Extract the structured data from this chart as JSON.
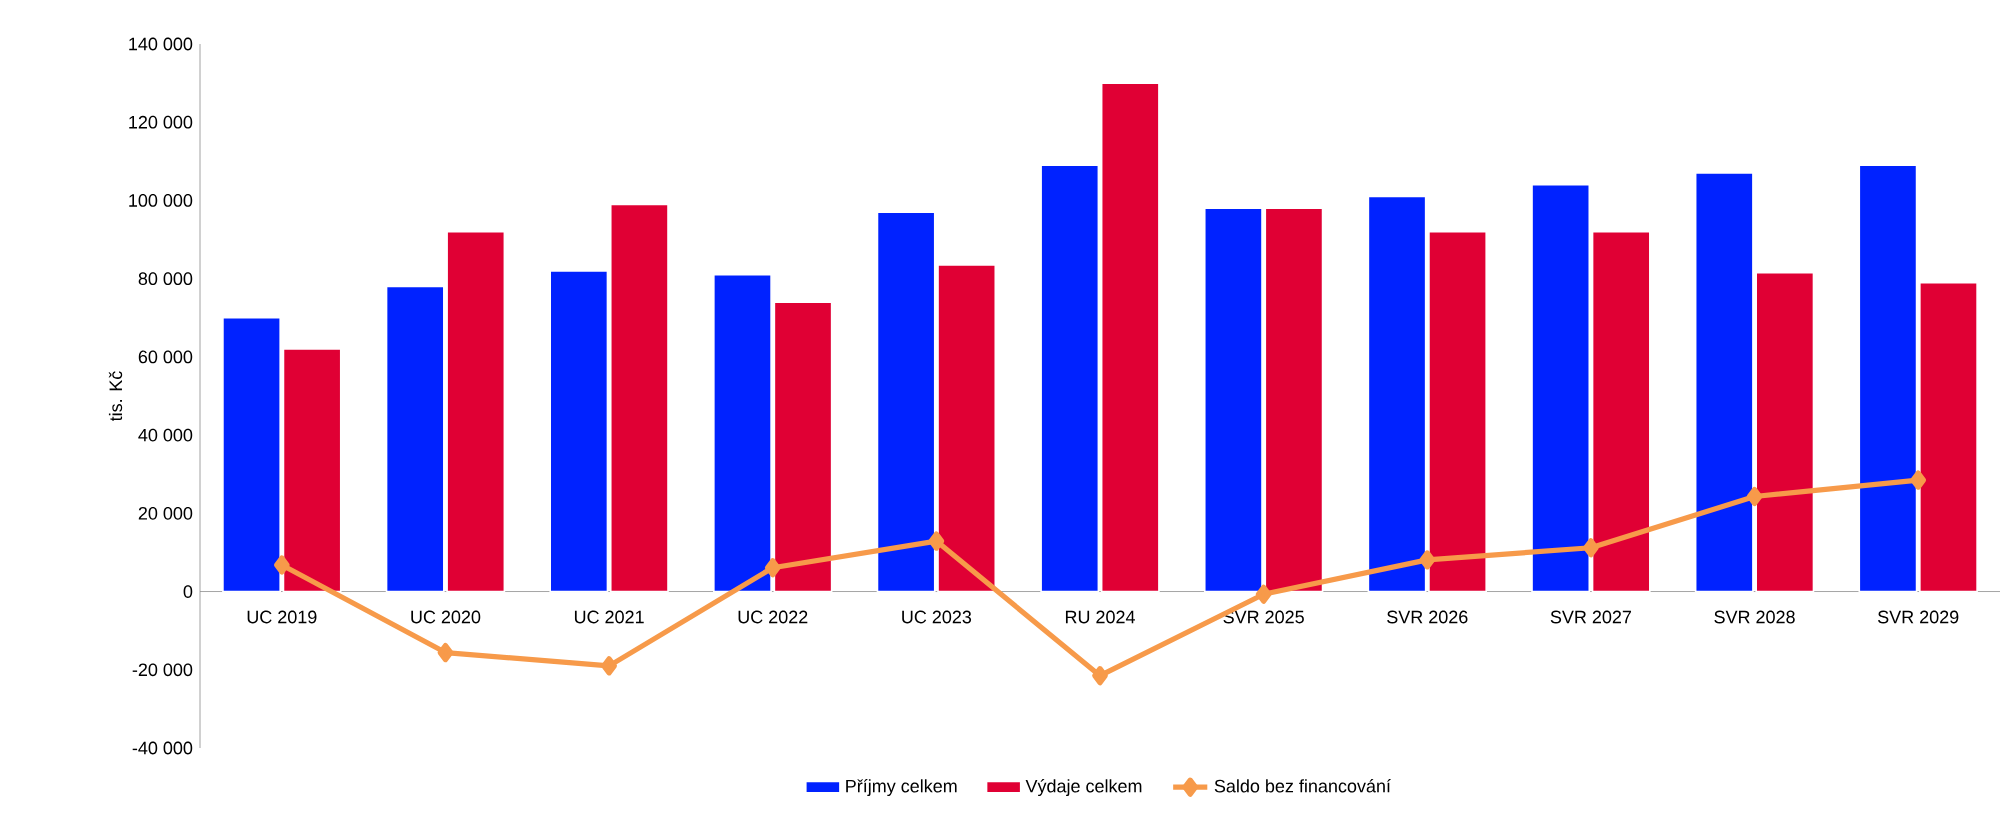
{
  "chart_data": {
    "type": "bar",
    "ylabel": "tis. Kč",
    "categories": [
      "UC 2019",
      "UC 2020",
      "UC 2021",
      "UC 2022",
      "UC 2023",
      "RU 2024",
      "SVR 2025",
      "SVR 2026",
      "SVR 2027",
      "SVR 2028",
      "SVR 2029"
    ],
    "series": [
      {
        "name": "Příjmy celkem",
        "color": "#0022ff",
        "values": [
          70000,
          78000,
          82000,
          81000,
          97000,
          109000,
          98000,
          101000,
          104000,
          107000,
          109000
        ]
      },
      {
        "name": "Výdaje celkem",
        "color": "#e00034",
        "values": [
          62000,
          92000,
          99000,
          74000,
          83500,
          130000,
          98000,
          92000,
          92000,
          81500,
          79000
        ]
      },
      {
        "name": "Saldo bez financování",
        "type": "line",
        "color": "#f79a4a",
        "marker": "diamond",
        "values": [
          6800,
          -15600,
          -19000,
          6100,
          12900,
          -21500,
          -700,
          8100,
          11200,
          24300,
          28500
        ]
      }
    ],
    "ylim": [
      -40000,
      140000
    ],
    "yticks": [
      {
        "value": -40000,
        "label": "-40 000"
      },
      {
        "value": -20000,
        "label": "-20 000"
      },
      0,
      {
        "value": 20000,
        "label": "20 000"
      },
      {
        "value": 40000,
        "label": "40 000"
      },
      {
        "value": 60000,
        "label": "60 000"
      },
      {
        "value": 80000,
        "label": "80 000"
      },
      {
        "value": 100000,
        "label": "100 000"
      },
      {
        "value": 120000,
        "label": "120 000"
      },
      {
        "value": 140000,
        "label": "140 000"
      }
    ],
    "legend": "bottom"
  }
}
